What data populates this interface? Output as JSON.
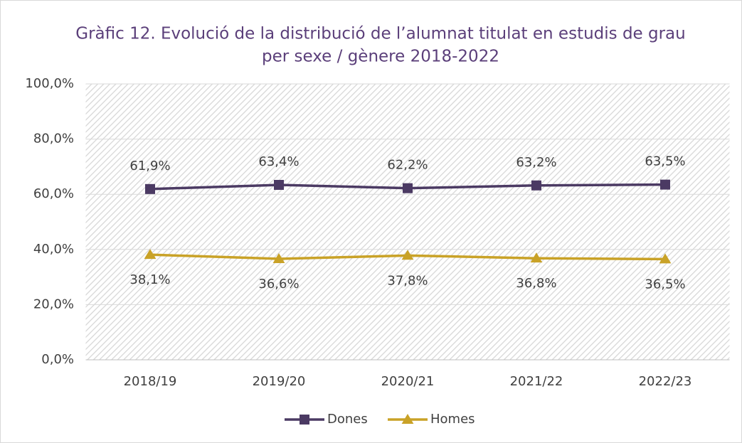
{
  "chart_data": {
    "type": "line",
    "title": [
      "Gràfic 12. Evolució de la distribució de l’alumnat titulat en estudis de grau",
      "per sexe / gènere 2018-2022"
    ],
    "categories": [
      "2018/19",
      "2019/20",
      "2020/21",
      "2021/22",
      "2022/23"
    ],
    "series": [
      {
        "name": "Dones",
        "color": "#4b3a63",
        "marker": "square",
        "values": [
          61.9,
          63.4,
          62.2,
          63.2,
          63.5
        ],
        "value_labels": [
          "61,9%",
          "63,4%",
          "62,2%",
          "63,2%",
          "63,5%"
        ]
      },
      {
        "name": "Homes",
        "color": "#c9a227",
        "marker": "triangle",
        "values": [
          38.1,
          36.6,
          37.8,
          36.8,
          36.5
        ],
        "value_labels": [
          "38,1%",
          "36,6%",
          "37,8%",
          "36,8%",
          "36,5%"
        ]
      }
    ],
    "ylim": [
      0,
      100
    ],
    "yticks": [
      {
        "value": 0,
        "label": "0,0%"
      },
      {
        "value": 20,
        "label": "20,0%"
      },
      {
        "value": 40,
        "label": "40,0%"
      },
      {
        "value": 60,
        "label": "60,0%"
      },
      {
        "value": 80,
        "label": "80,0%"
      },
      {
        "value": 100,
        "label": "100,0%"
      }
    ],
    "grid": true,
    "legend": "bottom"
  }
}
